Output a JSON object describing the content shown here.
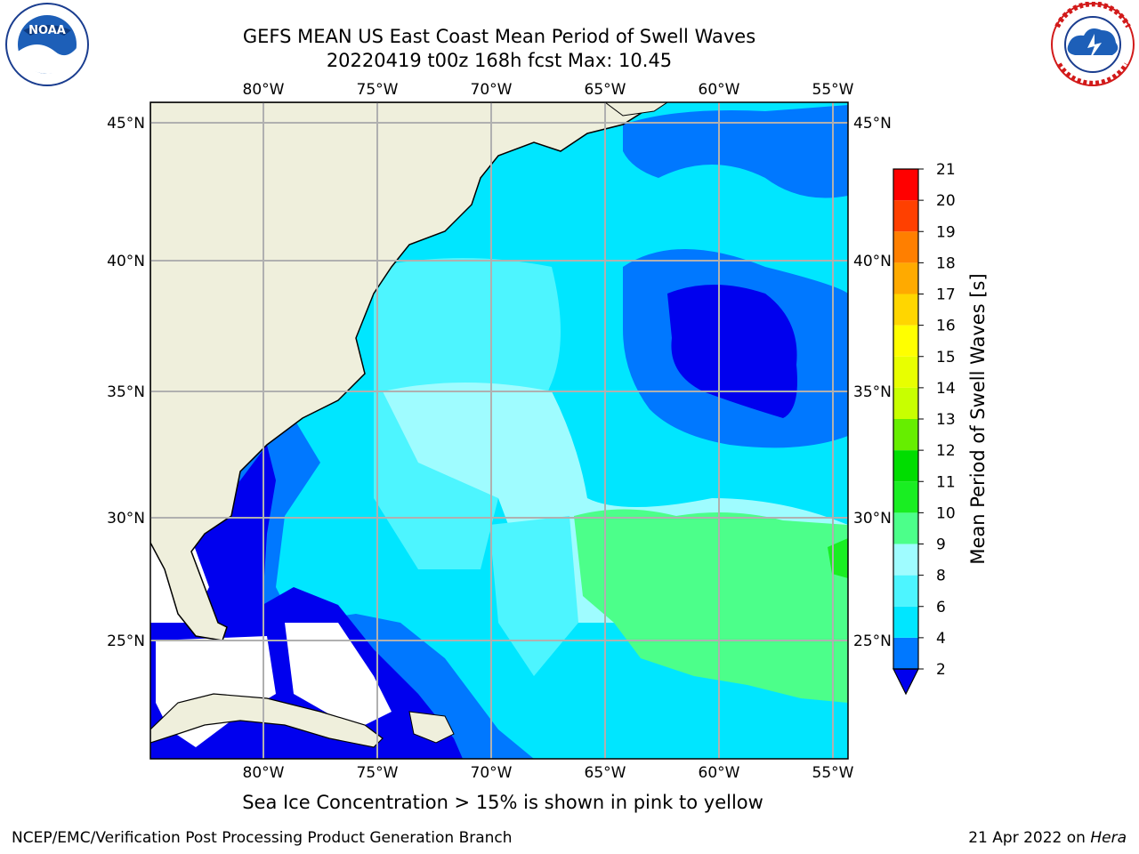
{
  "header": {
    "title_line1": "GEFS MEAN US East Coast Mean Period of Swell Waves",
    "title_line2": "20220419 t00z 168h fcst   Max: 10.45"
  },
  "logos": {
    "noaa": {
      "name": "noaa-logo",
      "text": "NOAA",
      "ring_text": "NATIONAL OCEANIC AND ATMOSPHERIC ADMINISTRATION · U.S. DEPARTMENT OF COMMERCE"
    },
    "nws": {
      "name": "nws-logo",
      "ring_text": "NATIONAL WEATHER SERVICE"
    }
  },
  "map": {
    "lon_labels_top": [
      "80°W",
      "75°W",
      "70°W",
      "65°W",
      "60°W",
      "55°W"
    ],
    "lon_labels_bottom": [
      "80°W",
      "75°W",
      "70°W",
      "65°W",
      "60°W",
      "55°W"
    ],
    "lat_labels_left": [
      "45°N",
      "40°N",
      "35°N",
      "30°N",
      "25°N"
    ],
    "lat_labels_right": [
      "45°N",
      "40°N",
      "35°N",
      "30°N",
      "25°N"
    ],
    "land_color": "#efefdc",
    "grid_color": "#b0b0b0"
  },
  "colorbar": {
    "label": "Mean Period of Swell Waves [s]",
    "ticks": [
      "2",
      "4",
      "6",
      "8",
      "9",
      "10",
      "11",
      "12",
      "13",
      "14",
      "15",
      "16",
      "17",
      "18",
      "19",
      "20",
      "21"
    ],
    "colors": [
      "#0000ee",
      "#0078ff",
      "#00e6ff",
      "#4df5ff",
      "#9ffcff",
      "#4cff8a",
      "#19ee22",
      "#00dd00",
      "#66ee00",
      "#c8ff00",
      "#e8ff00",
      "#ffff00",
      "#ffd600",
      "#ffaa00",
      "#ff7f00",
      "#ff4000",
      "#ff0000"
    ],
    "extend_color": "#0000ee"
  },
  "footer": {
    "note": "Sea Ice Concentration > 15% is shown in pink to yellow",
    "left": "NCEP/EMC/Verification Post Processing Product Generation Branch",
    "right_prefix": "21 Apr 2022 on ",
    "right_host": "Hera"
  }
}
